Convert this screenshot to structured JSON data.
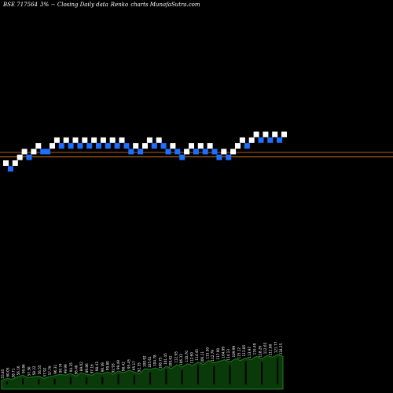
{
  "header": {
    "symbol": "BSE 717564",
    "box_size": "3%",
    "separator": "--",
    "description": "Closing Daily data",
    "chart_kind": "Renko",
    "site": "charts MunafaSutra.com"
  },
  "colors": {
    "background": "#000000",
    "up_brick": "#ffffff",
    "down_brick": "#1e6fff",
    "ref_line_upper": "#b05a1a",
    "ref_line_lower": "#c87020",
    "volume_area": "#0a3a0a",
    "volume_top": "#1e7a1e",
    "volume_bar": "#000000",
    "volume_label": "#ffffff"
  },
  "chart_data": {
    "type": "renko",
    "bricks": [
      {
        "dir": "up",
        "level": 0
      },
      {
        "dir": "down",
        "level": -1
      },
      {
        "dir": "up",
        "level": 0
      },
      {
        "dir": "up",
        "level": 1
      },
      {
        "dir": "up",
        "level": 2
      },
      {
        "dir": "down",
        "level": 1
      },
      {
        "dir": "up",
        "level": 2
      },
      {
        "dir": "up",
        "level": 3
      },
      {
        "dir": "down",
        "level": 2
      },
      {
        "dir": "down",
        "level": 2
      },
      {
        "dir": "up",
        "level": 3
      },
      {
        "dir": "up",
        "level": 4
      },
      {
        "dir": "down",
        "level": 3
      },
      {
        "dir": "up",
        "level": 4
      },
      {
        "dir": "down",
        "level": 3
      },
      {
        "dir": "up",
        "level": 4
      },
      {
        "dir": "down",
        "level": 3
      },
      {
        "dir": "up",
        "level": 4
      },
      {
        "dir": "down",
        "level": 3
      },
      {
        "dir": "up",
        "level": 4
      },
      {
        "dir": "down",
        "level": 3
      },
      {
        "dir": "up",
        "level": 4
      },
      {
        "dir": "down",
        "level": 3
      },
      {
        "dir": "up",
        "level": 4
      },
      {
        "dir": "down",
        "level": 3
      },
      {
        "dir": "up",
        "level": 4
      },
      {
        "dir": "down",
        "level": 3
      },
      {
        "dir": "down",
        "level": 2
      },
      {
        "dir": "up",
        "level": 3
      },
      {
        "dir": "down",
        "level": 2
      },
      {
        "dir": "up",
        "level": 3
      },
      {
        "dir": "up",
        "level": 4
      },
      {
        "dir": "down",
        "level": 3
      },
      {
        "dir": "up",
        "level": 4
      },
      {
        "dir": "down",
        "level": 3
      },
      {
        "dir": "down",
        "level": 2
      },
      {
        "dir": "up",
        "level": 3
      },
      {
        "dir": "down",
        "level": 2
      },
      {
        "dir": "down",
        "level": 1
      },
      {
        "dir": "up",
        "level": 2
      },
      {
        "dir": "up",
        "level": 3
      },
      {
        "dir": "down",
        "level": 2
      },
      {
        "dir": "up",
        "level": 3
      },
      {
        "dir": "down",
        "level": 2
      },
      {
        "dir": "up",
        "level": 3
      },
      {
        "dir": "down",
        "level": 2
      },
      {
        "dir": "down",
        "level": 1
      },
      {
        "dir": "up",
        "level": 2
      },
      {
        "dir": "down",
        "level": 1
      },
      {
        "dir": "up",
        "level": 2
      },
      {
        "dir": "up",
        "level": 3
      },
      {
        "dir": "up",
        "level": 4
      },
      {
        "dir": "down",
        "level": 3
      },
      {
        "dir": "up",
        "level": 4
      },
      {
        "dir": "up",
        "level": 5
      },
      {
        "dir": "down",
        "level": 4
      },
      {
        "dir": "up",
        "level": 5
      },
      {
        "dir": "down",
        "level": 4
      },
      {
        "dir": "up",
        "level": 5
      },
      {
        "dir": "down",
        "level": 4
      },
      {
        "dir": "up",
        "level": 5
      }
    ],
    "reference_lines": [
      {
        "name": "upper",
        "level": 2.35
      },
      {
        "name": "lower",
        "level": 1.55
      }
    ],
    "volume_labels": [
      "55.85",
      "60.05",
      "58.71",
      "56.16",
      "56.86",
      "57.30",
      "58.22",
      "56.55",
      "57.92",
      "57.79",
      "96.31",
      "96.74",
      "99.99",
      "94.35",
      "96.40",
      "89.02",
      "89.86",
      "97.16",
      "98.43",
      "96.39",
      "99.80",
      "92.93",
      "99.49",
      "98.42",
      "95.45",
      "95.17",
      "92.35",
      "100.92",
      "105.61",
      "104.78",
      "108.75",
      "101.45",
      "109.62",
      "112.95",
      "106.33",
      "110.70",
      "112.60",
      "114.45",
      "106.11",
      "115.50",
      "112.79",
      "117.00",
      "104.99",
      "114.13",
      "109.99",
      "115.12",
      "113.85",
      "113.97",
      "116.49",
      "118.26",
      "112.65",
      "111.80",
      "121.77",
      "118.25"
    ],
    "volume_heights": [
      0.22,
      0.26,
      0.24,
      0.3,
      0.34,
      0.28,
      0.3,
      0.32,
      0.26,
      0.3,
      0.33,
      0.36,
      0.34,
      0.38,
      0.32,
      0.4,
      0.36,
      0.34,
      0.4,
      0.38,
      0.42,
      0.36,
      0.44,
      0.4,
      0.46,
      0.42,
      0.38,
      0.5,
      0.48,
      0.52,
      0.46,
      0.56,
      0.5,
      0.6,
      0.54,
      0.62,
      0.58,
      0.66,
      0.6,
      0.7,
      0.64,
      0.68,
      0.72,
      0.66,
      0.74,
      0.7,
      0.76,
      0.72,
      0.8,
      0.74,
      0.82,
      0.78,
      0.84,
      0.8
    ]
  }
}
